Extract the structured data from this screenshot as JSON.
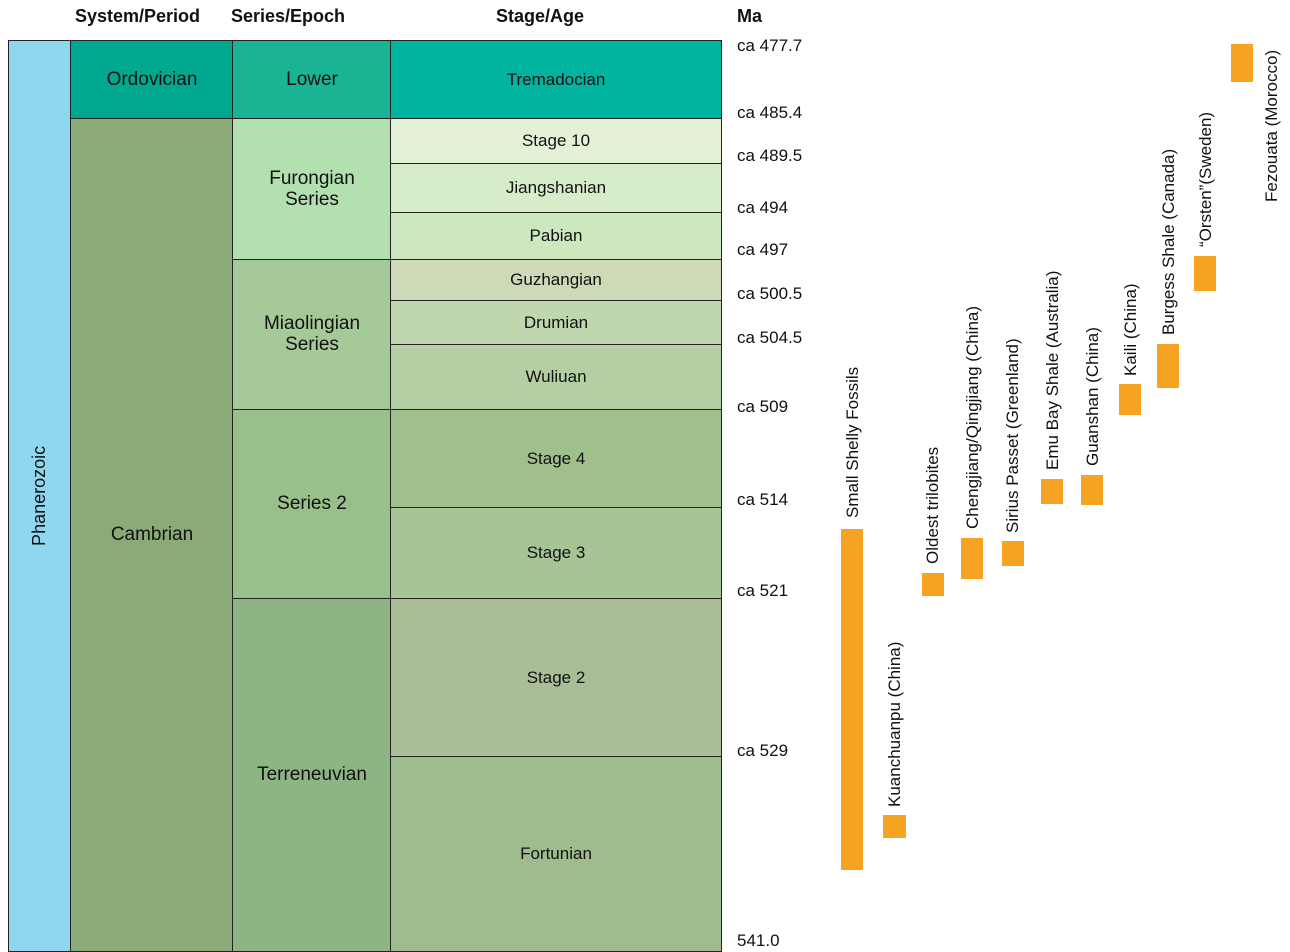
{
  "headers": {
    "system": "System/Period",
    "series": "Series/Epoch",
    "stage": "Stage/Age",
    "ma": "Ma"
  },
  "eon": "Phanerozoic",
  "periods": [
    {
      "name": "Ordovician",
      "color": "#00a88f"
    },
    {
      "name": "Cambrian",
      "color": "#8aab78"
    }
  ],
  "epochs": [
    {
      "name": "Lower",
      "color": "#1ab394"
    },
    {
      "name": "Furongian Series",
      "color": "#b3e0b0"
    },
    {
      "name": "Miaolingian Series",
      "color": "#a6c99a"
    },
    {
      "name": "Series 2",
      "color": "#99c08a"
    },
    {
      "name": "Terreneuvian",
      "color": "#8db583"
    }
  ],
  "stages": [
    {
      "name": "Tremadocian",
      "color": "#00b4a0"
    },
    {
      "name": "Stage 10",
      "color": "#e3f1d6"
    },
    {
      "name": "Jiangshanian",
      "color": "#d7ecc9"
    },
    {
      "name": "Pabian",
      "color": "#cde7bf"
    },
    {
      "name": "Guzhangian",
      "color": "#ccdab8"
    },
    {
      "name": "Drumian",
      "color": "#bfd6ae"
    },
    {
      "name": "Wuliuan",
      "color": "#b3cfa3"
    },
    {
      "name": "Stage 4",
      "color": "#9fc08c"
    },
    {
      "name": "Stage 3",
      "color": "#a6c495"
    },
    {
      "name": "Stage 2",
      "color": "#a9bd96"
    },
    {
      "name": "Fortunian",
      "color": "#9fbc8f"
    }
  ],
  "ages": [
    "ca 477.7",
    "ca 485.4",
    "ca 489.5",
    "ca 494",
    "ca 497",
    "ca 500.5",
    "ca 504.5",
    "ca 509",
    "ca 514",
    "ca 521",
    "ca 529",
    "541.0"
  ],
  "fossils": [
    {
      "label": "Small Shelly Fossils"
    },
    {
      "label": "Kuanchuanpu (China)"
    },
    {
      "label": "Oldest trilobites"
    },
    {
      "label": "Chengjiang/Qingjiang (China)"
    },
    {
      "label": "Sirius Passet (Greenland)"
    },
    {
      "label": "Emu Bay Shale (Australia)"
    },
    {
      "label": "Guanshan (China)"
    },
    {
      "label": "Kaili (China)"
    },
    {
      "label": "Burgess Shale (Canada)"
    },
    {
      "label": "“Orsten”(Sweden)"
    },
    {
      "label": "Fezouata (Morocco)"
    }
  ],
  "bar_color": "#f6a222",
  "eon_color": "#8fd6ef"
}
